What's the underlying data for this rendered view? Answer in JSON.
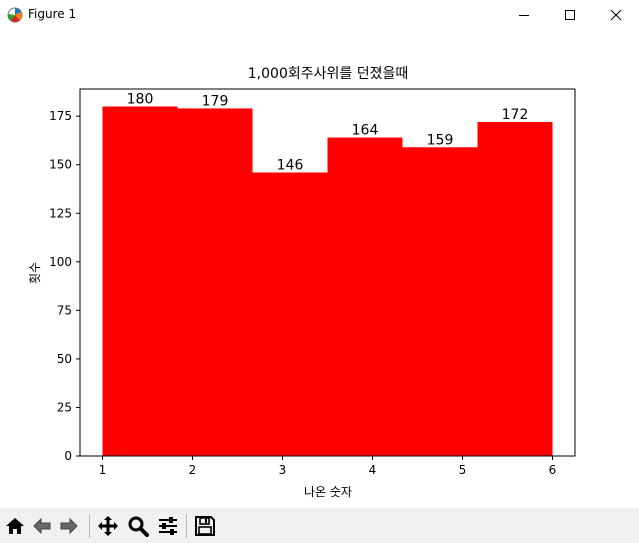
{
  "window": {
    "title": "Figure 1"
  },
  "toolbar": {
    "tools": [
      "home-icon",
      "back-icon",
      "forward-icon",
      "pan-icon",
      "zoom-icon",
      "configure-icon",
      "save-icon"
    ]
  },
  "chart_data": {
    "type": "bar",
    "title": "1,000회주사위를 던졌을때",
    "xlabel": "나온 숫자",
    "ylabel": "횟수",
    "bin_edges": [
      1,
      1.8333,
      2.6667,
      3.5,
      4.3333,
      5.1667,
      6
    ],
    "values": [
      180,
      179,
      146,
      164,
      159,
      172
    ],
    "xlim": [
      0.75,
      6.25
    ],
    "ylim": [
      0,
      189
    ],
    "xticks": [
      1,
      2,
      3,
      4,
      5,
      6
    ],
    "yticks": [
      0,
      25,
      50,
      75,
      100,
      125,
      150,
      175
    ],
    "bar_color": "#ff0000",
    "grid": false,
    "legend": false
  }
}
